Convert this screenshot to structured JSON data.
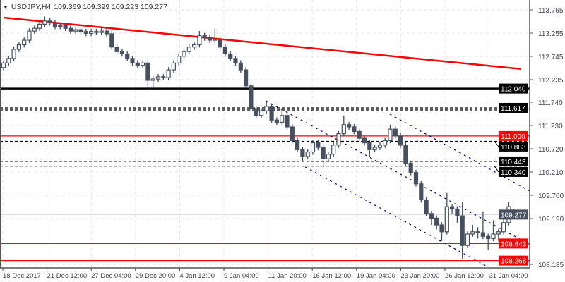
{
  "header": {
    "symbol": "USDJPY,H4",
    "ohlc": "109.369 109.399 109.223 109.277",
    "icon": "triangle-down-icon"
  },
  "colors": {
    "candle": "#46505e",
    "bull_fill": "#ffffff",
    "trendline": "#ff0000",
    "channel": "#000080",
    "support": "#000000",
    "level_red": "#ff0000",
    "grid": "#e4e4e4",
    "current_price_bg": "#46505e"
  },
  "chart_data": {
    "type": "candlestick",
    "title": "USDJPY,H4",
    "ylim": [
      108.15,
      113.98
    ],
    "y_ticks": [
      "113.765",
      "113.255",
      "112.745",
      "112.235",
      "111.740",
      "111.230",
      "110.720",
      "110.210",
      "109.700",
      "109.190",
      "108.185"
    ],
    "x_ticks": [
      "18 Dec 2017",
      "21 Dec 12:00",
      "27 Dec 04:00",
      "29 Dec 20:00",
      "4 Jan 12:00",
      "9 Jan 04:00",
      "11 Jan 20:00",
      "16 Jan 12:00",
      "19 Jan 04:00",
      "23 Jan 20:00",
      "26 Jan 12:00",
      "31 Jan 04:00"
    ],
    "grid": true,
    "candles_ohlc": [
      [
        112.5,
        112.66,
        112.44,
        112.6
      ],
      [
        112.6,
        112.76,
        112.54,
        112.7
      ],
      [
        112.7,
        112.96,
        112.64,
        112.9
      ],
      [
        112.9,
        113.06,
        112.84,
        113.0
      ],
      [
        113.0,
        113.16,
        112.94,
        113.1
      ],
      [
        113.1,
        113.36,
        113.04,
        113.3
      ],
      [
        113.3,
        113.42,
        113.24,
        113.36
      ],
      [
        113.36,
        113.51,
        113.3,
        113.45
      ],
      [
        113.45,
        113.62,
        113.39,
        113.52
      ],
      [
        113.52,
        113.58,
        113.42,
        113.48
      ],
      [
        113.48,
        113.54,
        113.34,
        113.4
      ],
      [
        113.4,
        113.48,
        113.34,
        113.42
      ],
      [
        113.42,
        113.48,
        113.3,
        113.36
      ],
      [
        113.36,
        113.42,
        113.24,
        113.3
      ],
      [
        113.3,
        113.39,
        113.24,
        113.33
      ],
      [
        113.33,
        113.39,
        113.23,
        113.29
      ],
      [
        113.29,
        113.35,
        113.19,
        113.25
      ],
      [
        113.25,
        113.35,
        113.19,
        113.29
      ],
      [
        113.29,
        113.35,
        113.21,
        113.27
      ],
      [
        113.27,
        113.36,
        113.21,
        113.3
      ],
      [
        113.3,
        113.36,
        113.18,
        113.24
      ],
      [
        113.24,
        113.3,
        112.89,
        112.95
      ],
      [
        112.95,
        113.01,
        112.79,
        112.85
      ],
      [
        112.85,
        112.91,
        112.74,
        112.8
      ],
      [
        112.8,
        112.86,
        112.64,
        112.7
      ],
      [
        112.7,
        112.76,
        112.54,
        112.6
      ],
      [
        112.6,
        112.66,
        112.49,
        112.55
      ],
      [
        112.55,
        112.66,
        112.49,
        112.6
      ],
      [
        112.6,
        112.66,
        112.04,
        112.22
      ],
      [
        112.22,
        112.31,
        112.04,
        112.25
      ],
      [
        112.25,
        112.36,
        112.19,
        112.3
      ],
      [
        112.3,
        112.36,
        112.22,
        112.28
      ],
      [
        112.28,
        112.51,
        112.22,
        112.45
      ],
      [
        112.45,
        112.66,
        112.39,
        112.6
      ],
      [
        112.6,
        112.81,
        112.54,
        112.75
      ],
      [
        112.75,
        112.91,
        112.69,
        112.85
      ],
      [
        112.85,
        113.01,
        112.79,
        112.95
      ],
      [
        112.95,
        113.06,
        112.89,
        113.0
      ],
      [
        113.0,
        113.3,
        112.94,
        113.2
      ],
      [
        113.2,
        113.26,
        113.09,
        113.15
      ],
      [
        113.15,
        113.21,
        113.04,
        113.1
      ],
      [
        113.1,
        113.35,
        113.04,
        113.12
      ],
      [
        113.12,
        113.18,
        112.89,
        112.95
      ],
      [
        112.95,
        113.01,
        112.74,
        112.8
      ],
      [
        112.8,
        112.86,
        112.64,
        112.7
      ],
      [
        112.7,
        112.76,
        112.54,
        112.6
      ],
      [
        112.6,
        112.66,
        112.39,
        112.45
      ],
      [
        112.45,
        112.51,
        112.04,
        112.1
      ],
      [
        112.1,
        112.16,
        111.54,
        111.6
      ],
      [
        111.6,
        111.66,
        111.39,
        111.45
      ],
      [
        111.45,
        111.61,
        111.39,
        111.55
      ],
      [
        111.55,
        111.75,
        111.49,
        111.65
      ],
      [
        111.65,
        111.71,
        111.29,
        111.35
      ],
      [
        111.35,
        111.41,
        111.24,
        111.3
      ],
      [
        111.3,
        111.61,
        111.24,
        111.45
      ],
      [
        111.45,
        111.51,
        111.14,
        111.2
      ],
      [
        111.2,
        111.26,
        110.84,
        110.9
      ],
      [
        110.9,
        110.96,
        110.64,
        110.7
      ],
      [
        110.7,
        110.76,
        110.45,
        110.55
      ],
      [
        110.55,
        110.71,
        110.49,
        110.65
      ],
      [
        110.65,
        110.91,
        110.59,
        110.85
      ],
      [
        110.85,
        110.91,
        110.69,
        110.75
      ],
      [
        110.75,
        110.81,
        110.34,
        110.5
      ],
      [
        110.5,
        110.66,
        110.44,
        110.6
      ],
      [
        110.6,
        110.86,
        110.54,
        110.8
      ],
      [
        110.8,
        111.11,
        110.74,
        111.05
      ],
      [
        111.05,
        111.45,
        110.99,
        111.25
      ],
      [
        111.25,
        111.31,
        111.14,
        111.2
      ],
      [
        111.2,
        111.26,
        111.04,
        111.1
      ],
      [
        111.1,
        111.16,
        110.89,
        110.95
      ],
      [
        110.95,
        111.01,
        110.79,
        110.85
      ],
      [
        110.85,
        110.91,
        110.54,
        110.7
      ],
      [
        110.7,
        110.81,
        110.64,
        110.75
      ],
      [
        110.75,
        110.86,
        110.69,
        110.8
      ],
      [
        110.8,
        110.96,
        110.74,
        110.9
      ],
      [
        110.9,
        111.25,
        110.84,
        111.15
      ],
      [
        111.15,
        111.21,
        110.94,
        111.0
      ],
      [
        111.0,
        111.06,
        110.74,
        110.8
      ],
      [
        110.8,
        110.86,
        110.34,
        110.4
      ],
      [
        110.4,
        110.46,
        110.14,
        110.2
      ],
      [
        110.2,
        110.26,
        109.89,
        109.95
      ],
      [
        109.95,
        110.01,
        109.54,
        109.6
      ],
      [
        109.6,
        109.66,
        109.24,
        109.3
      ],
      [
        109.3,
        109.36,
        109.05,
        109.2
      ],
      [
        109.2,
        109.26,
        108.95,
        109.05
      ],
      [
        109.05,
        109.11,
        108.7,
        108.9
      ],
      [
        108.9,
        109.75,
        108.84,
        109.45
      ],
      [
        109.45,
        109.51,
        109.3,
        109.4
      ],
      [
        109.4,
        109.46,
        109.1,
        109.25
      ],
      [
        109.25,
        109.55,
        108.3,
        108.6
      ],
      [
        108.6,
        108.91,
        108.54,
        108.85
      ],
      [
        108.85,
        109.05,
        108.79,
        108.9
      ],
      [
        108.9,
        109.0,
        108.75,
        108.88
      ],
      [
        108.88,
        109.35,
        108.74,
        108.8
      ],
      [
        108.8,
        108.86,
        108.5,
        108.75
      ],
      [
        108.75,
        109.15,
        108.69,
        108.85
      ],
      [
        108.85,
        108.96,
        108.7,
        108.9
      ],
      [
        108.9,
        109.2,
        108.84,
        109.1
      ],
      [
        109.1,
        109.55,
        109.04,
        109.45
      ],
      [
        109.369,
        109.399,
        109.223,
        109.277
      ]
    ],
    "horizontal_levels": [
      {
        "price": 112.04,
        "label": "112.040",
        "style": "solid-thick",
        "color": "#000000",
        "label_bg": "#000000"
      },
      {
        "price": 111.617,
        "label": "111.617",
        "style": "dashed",
        "color": "#000000",
        "label_bg": "#000000"
      },
      {
        "price": 111.57,
        "label": "",
        "style": "dashed",
        "color": "#000000"
      },
      {
        "price": 111.0,
        "label": "111.000",
        "style": "solid",
        "color": "#ff0000",
        "label_bg": "#ff0000"
      },
      {
        "price": 110.883,
        "label": "110.883",
        "style": "dashed",
        "color": "#000000",
        "label_bg": "#000000"
      },
      {
        "price": 110.443,
        "label": "110.443",
        "style": "dashed",
        "color": "#000000",
        "label_bg": "#000000"
      },
      {
        "price": 110.34,
        "label": "110.340",
        "style": "dashed",
        "color": "#000000",
        "label_bg": "#000000"
      },
      {
        "price": 108.643,
        "label": "108.643",
        "style": "solid",
        "color": "#ff0000",
        "label_bg": "#ff0000"
      },
      {
        "price": 108.268,
        "label": "108.268",
        "style": "solid",
        "color": "#ff0000",
        "label_bg": "#ff0000"
      }
    ],
    "current_price": {
      "price": 109.277,
      "label": "109.277"
    },
    "trendlines": [
      {
        "from": [
          0,
          113.595
        ],
        "to": [
          100.3,
          112.47
        ],
        "color": "#ff0000",
        "style": "solid-thick"
      },
      {
        "from": [
          50.9,
          111.77
        ],
        "to": [
          102.1,
          108.62
        ],
        "color": "#000080",
        "style": "dotted"
      },
      {
        "from": [
          74.9,
          111.48
        ],
        "to": [
          102.1,
          109.79
        ],
        "color": "#000080",
        "style": "dotted"
      },
      {
        "from": [
          58.5,
          110.32
        ],
        "to": [
          93.8,
          108.14
        ],
        "color": "#000080",
        "style": "dotted"
      }
    ]
  }
}
